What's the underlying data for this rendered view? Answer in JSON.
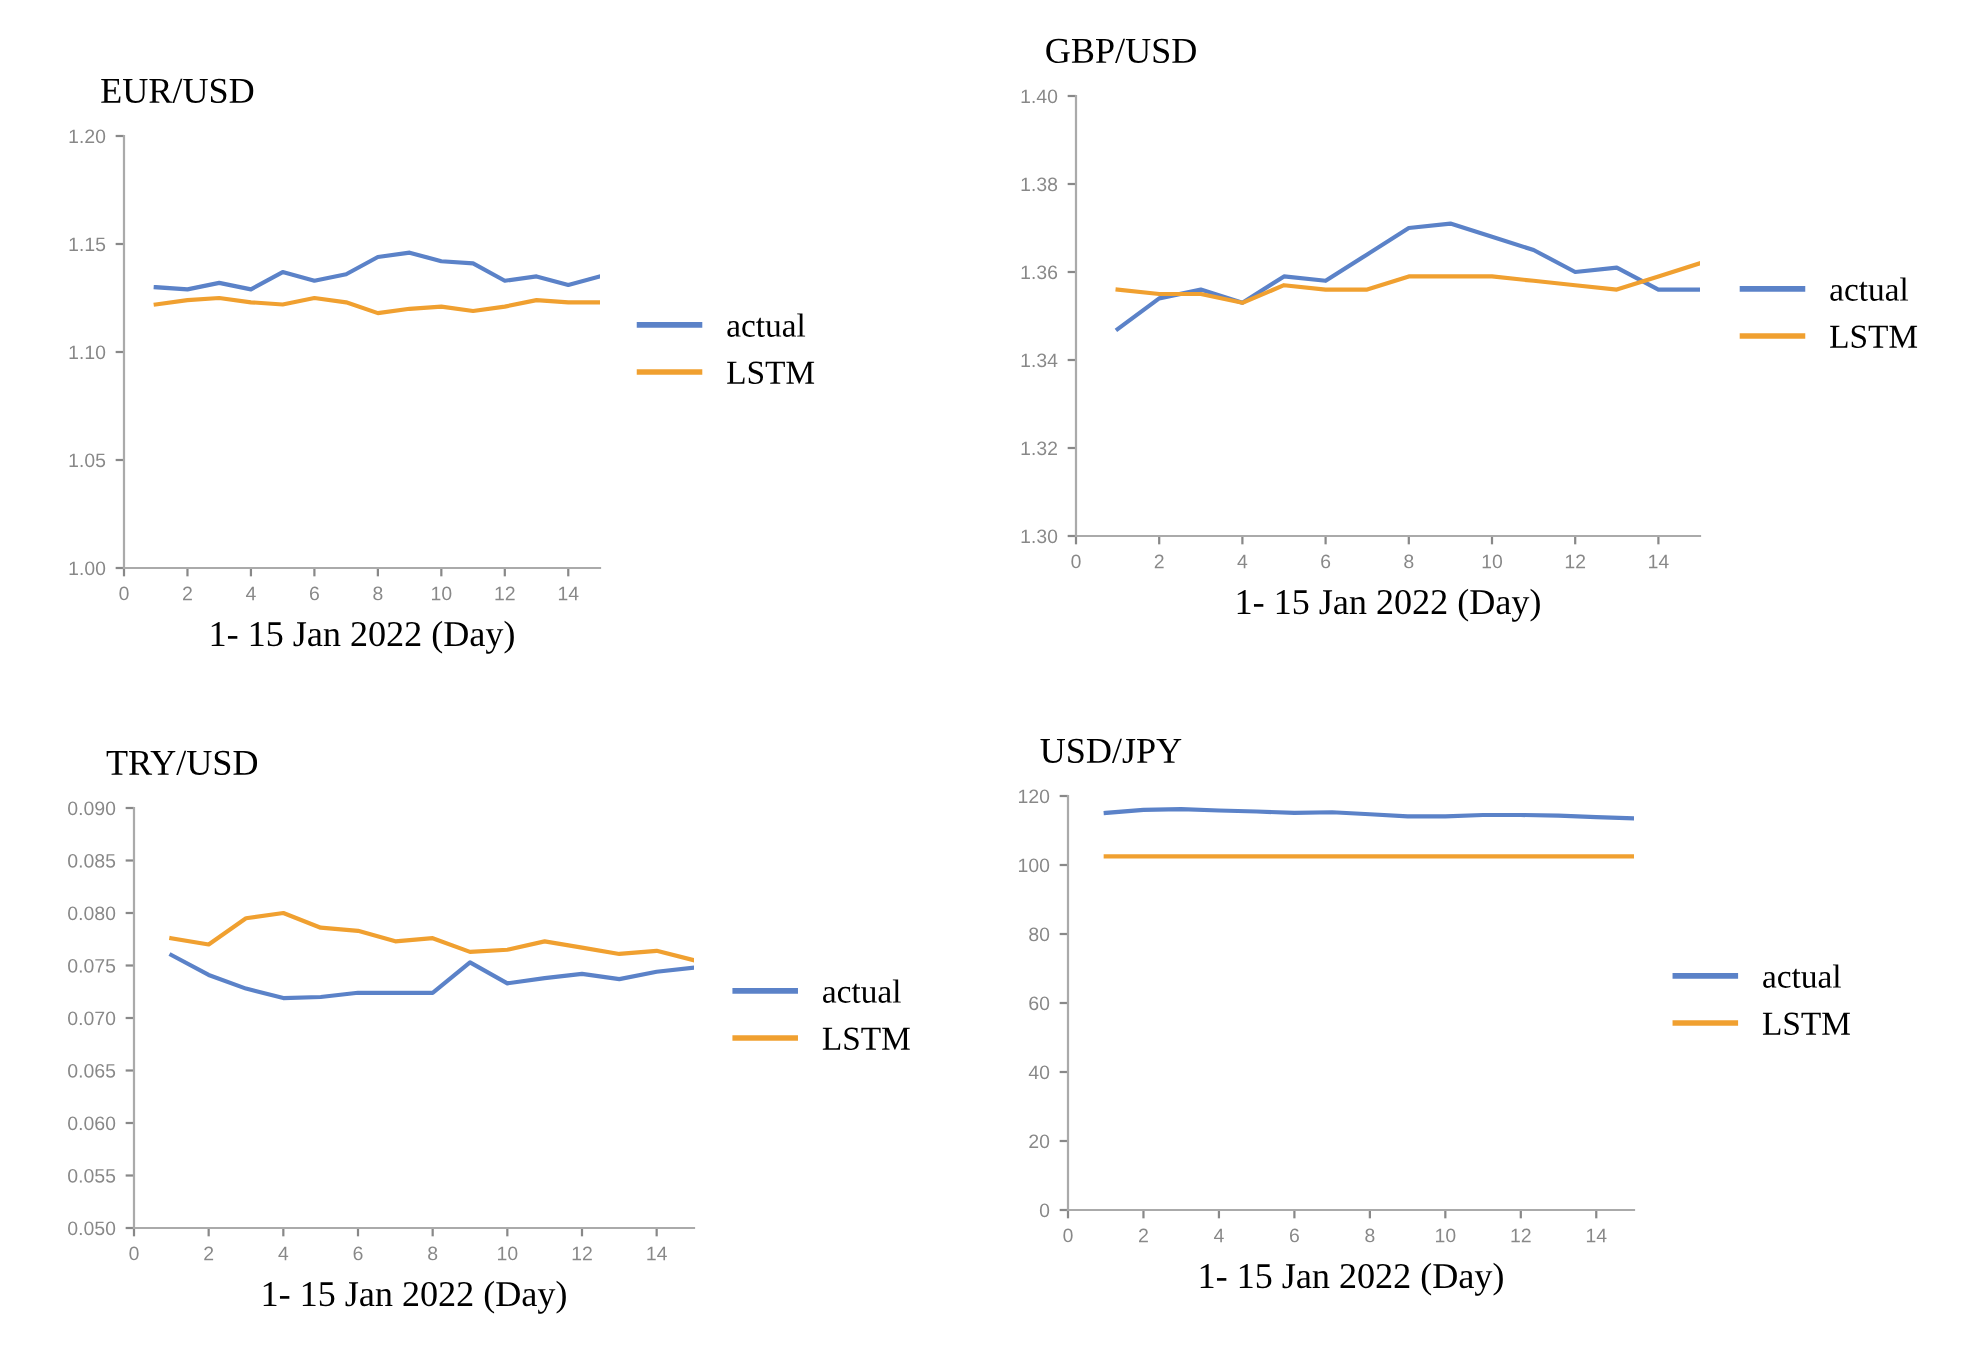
{
  "chart_data": [
    {
      "type": "line",
      "title": "EUR/USD",
      "xlabel": "1- 15 Jan 2022 (Day)",
      "x": [
        1,
        2,
        3,
        4,
        5,
        6,
        7,
        8,
        9,
        10,
        11,
        12,
        13,
        14,
        15
      ],
      "xlim": [
        0,
        15
      ],
      "xticks": [
        0,
        2,
        4,
        6,
        8,
        10,
        12,
        14
      ],
      "ylim": [
        1.0,
        1.2
      ],
      "yticks": [
        {
          "value": 1.0,
          "label": "1.00"
        },
        {
          "value": 1.05,
          "label": "1.05"
        },
        {
          "value": 1.1,
          "label": "1.10"
        },
        {
          "value": 1.15,
          "label": "1.15"
        },
        {
          "value": 1.2,
          "label": "1.20"
        }
      ],
      "legend": "right",
      "grid": false,
      "series": [
        {
          "name": "actual",
          "color": "#5b82c8",
          "values": [
            1.13,
            1.129,
            1.132,
            1.129,
            1.137,
            1.133,
            1.136,
            1.144,
            1.146,
            1.142,
            1.141,
            1.133,
            1.135,
            1.131,
            1.135
          ]
        },
        {
          "name": "LSTM",
          "color": "#f0a030",
          "values": [
            1.122,
            1.124,
            1.125,
            1.123,
            1.122,
            1.125,
            1.123,
            1.118,
            1.12,
            1.121,
            1.119,
            1.121,
            1.124,
            1.123,
            1.123
          ]
        }
      ]
    },
    {
      "type": "line",
      "title": "GBP/USD",
      "xlabel": "1- 15 Jan 2022 (Day)",
      "x": [
        1,
        2,
        3,
        4,
        5,
        6,
        7,
        8,
        9,
        10,
        11,
        12,
        13,
        14,
        15
      ],
      "xlim": [
        0,
        15
      ],
      "xticks": [
        0,
        2,
        4,
        6,
        8,
        10,
        12,
        14
      ],
      "ylim": [
        1.3,
        1.4
      ],
      "yticks": [
        {
          "value": 1.3,
          "label": "1.30"
        },
        {
          "value": 1.32,
          "label": "1.32"
        },
        {
          "value": 1.34,
          "label": "1.34"
        },
        {
          "value": 1.36,
          "label": "1.36"
        },
        {
          "value": 1.38,
          "label": "1.38"
        },
        {
          "value": 1.4,
          "label": "1.40"
        }
      ],
      "legend": "right",
      "grid": false,
      "series": [
        {
          "name": "actual",
          "color": "#5b82c8",
          "values": [
            1.347,
            1.354,
            1.356,
            1.353,
            1.359,
            1.358,
            1.364,
            1.37,
            1.371,
            1.368,
            1.365,
            1.36,
            1.361,
            1.356,
            1.356
          ]
        },
        {
          "name": "LSTM",
          "color": "#f0a030",
          "values": [
            1.356,
            1.355,
            1.355,
            1.353,
            1.357,
            1.356,
            1.356,
            1.359,
            1.359,
            1.359,
            1.358,
            1.357,
            1.356,
            1.359,
            1.362
          ]
        }
      ]
    },
    {
      "type": "line",
      "title": "TRY/USD",
      "xlabel": "1- 15 Jan 2022 (Day)",
      "x": [
        1,
        2,
        3,
        4,
        5,
        6,
        7,
        8,
        9,
        10,
        11,
        12,
        13,
        14,
        15
      ],
      "xlim": [
        0,
        15
      ],
      "xticks": [
        0,
        2,
        4,
        6,
        8,
        10,
        12,
        14
      ],
      "ylim": [
        0.05,
        0.09
      ],
      "yticks": [
        {
          "value": 0.05,
          "label": "0.050"
        },
        {
          "value": 0.055,
          "label": "0.055"
        },
        {
          "value": 0.06,
          "label": "0.060"
        },
        {
          "value": 0.065,
          "label": "0.065"
        },
        {
          "value": 0.07,
          "label": "0.070"
        },
        {
          "value": 0.075,
          "label": "0.075"
        },
        {
          "value": 0.08,
          "label": "0.080"
        },
        {
          "value": 0.085,
          "label": "0.085"
        },
        {
          "value": 0.09,
          "label": "0.090"
        }
      ],
      "legend": "right",
      "grid": false,
      "series": [
        {
          "name": "actual",
          "color": "#5b82c8",
          "values": [
            0.076,
            0.0741,
            0.0728,
            0.0719,
            0.072,
            0.0724,
            0.0724,
            0.0724,
            0.0753,
            0.0733,
            0.0738,
            0.0742,
            0.0737,
            0.0744,
            0.0748
          ]
        },
        {
          "name": "LSTM",
          "color": "#f0a030",
          "values": [
            0.0776,
            0.077,
            0.0795,
            0.08,
            0.0786,
            0.0783,
            0.0773,
            0.0776,
            0.0763,
            0.0765,
            0.0773,
            0.0767,
            0.0761,
            0.0764,
            0.0755
          ]
        }
      ]
    },
    {
      "type": "line",
      "title": "USD/JPY",
      "xlabel": "1- 15 Jan 2022 (Day)",
      "x": [
        1,
        2,
        3,
        4,
        5,
        6,
        7,
        8,
        9,
        10,
        11,
        12,
        13,
        14,
        15
      ],
      "xlim": [
        0,
        15
      ],
      "xticks": [
        0,
        2,
        4,
        6,
        8,
        10,
        12,
        14
      ],
      "ylim": [
        0,
        120
      ],
      "yticks": [
        0,
        20,
        40,
        60,
        80,
        100,
        120
      ],
      "legend": "right",
      "grid": false,
      "series": [
        {
          "name": "actual",
          "color": "#5b82c8",
          "values": [
            115.1,
            116.0,
            116.2,
            115.8,
            115.5,
            115.1,
            115.3,
            114.7,
            114.1,
            114.1,
            114.5,
            114.5,
            114.3,
            113.9,
            113.5
          ]
        },
        {
          "name": "LSTM",
          "color": "#f0a030",
          "values": [
            102.5,
            102.5,
            102.5,
            102.5,
            102.5,
            102.5,
            102.5,
            102.5,
            102.5,
            102.5,
            102.5,
            102.5,
            102.5,
            102.5,
            102.5
          ]
        }
      ]
    }
  ]
}
